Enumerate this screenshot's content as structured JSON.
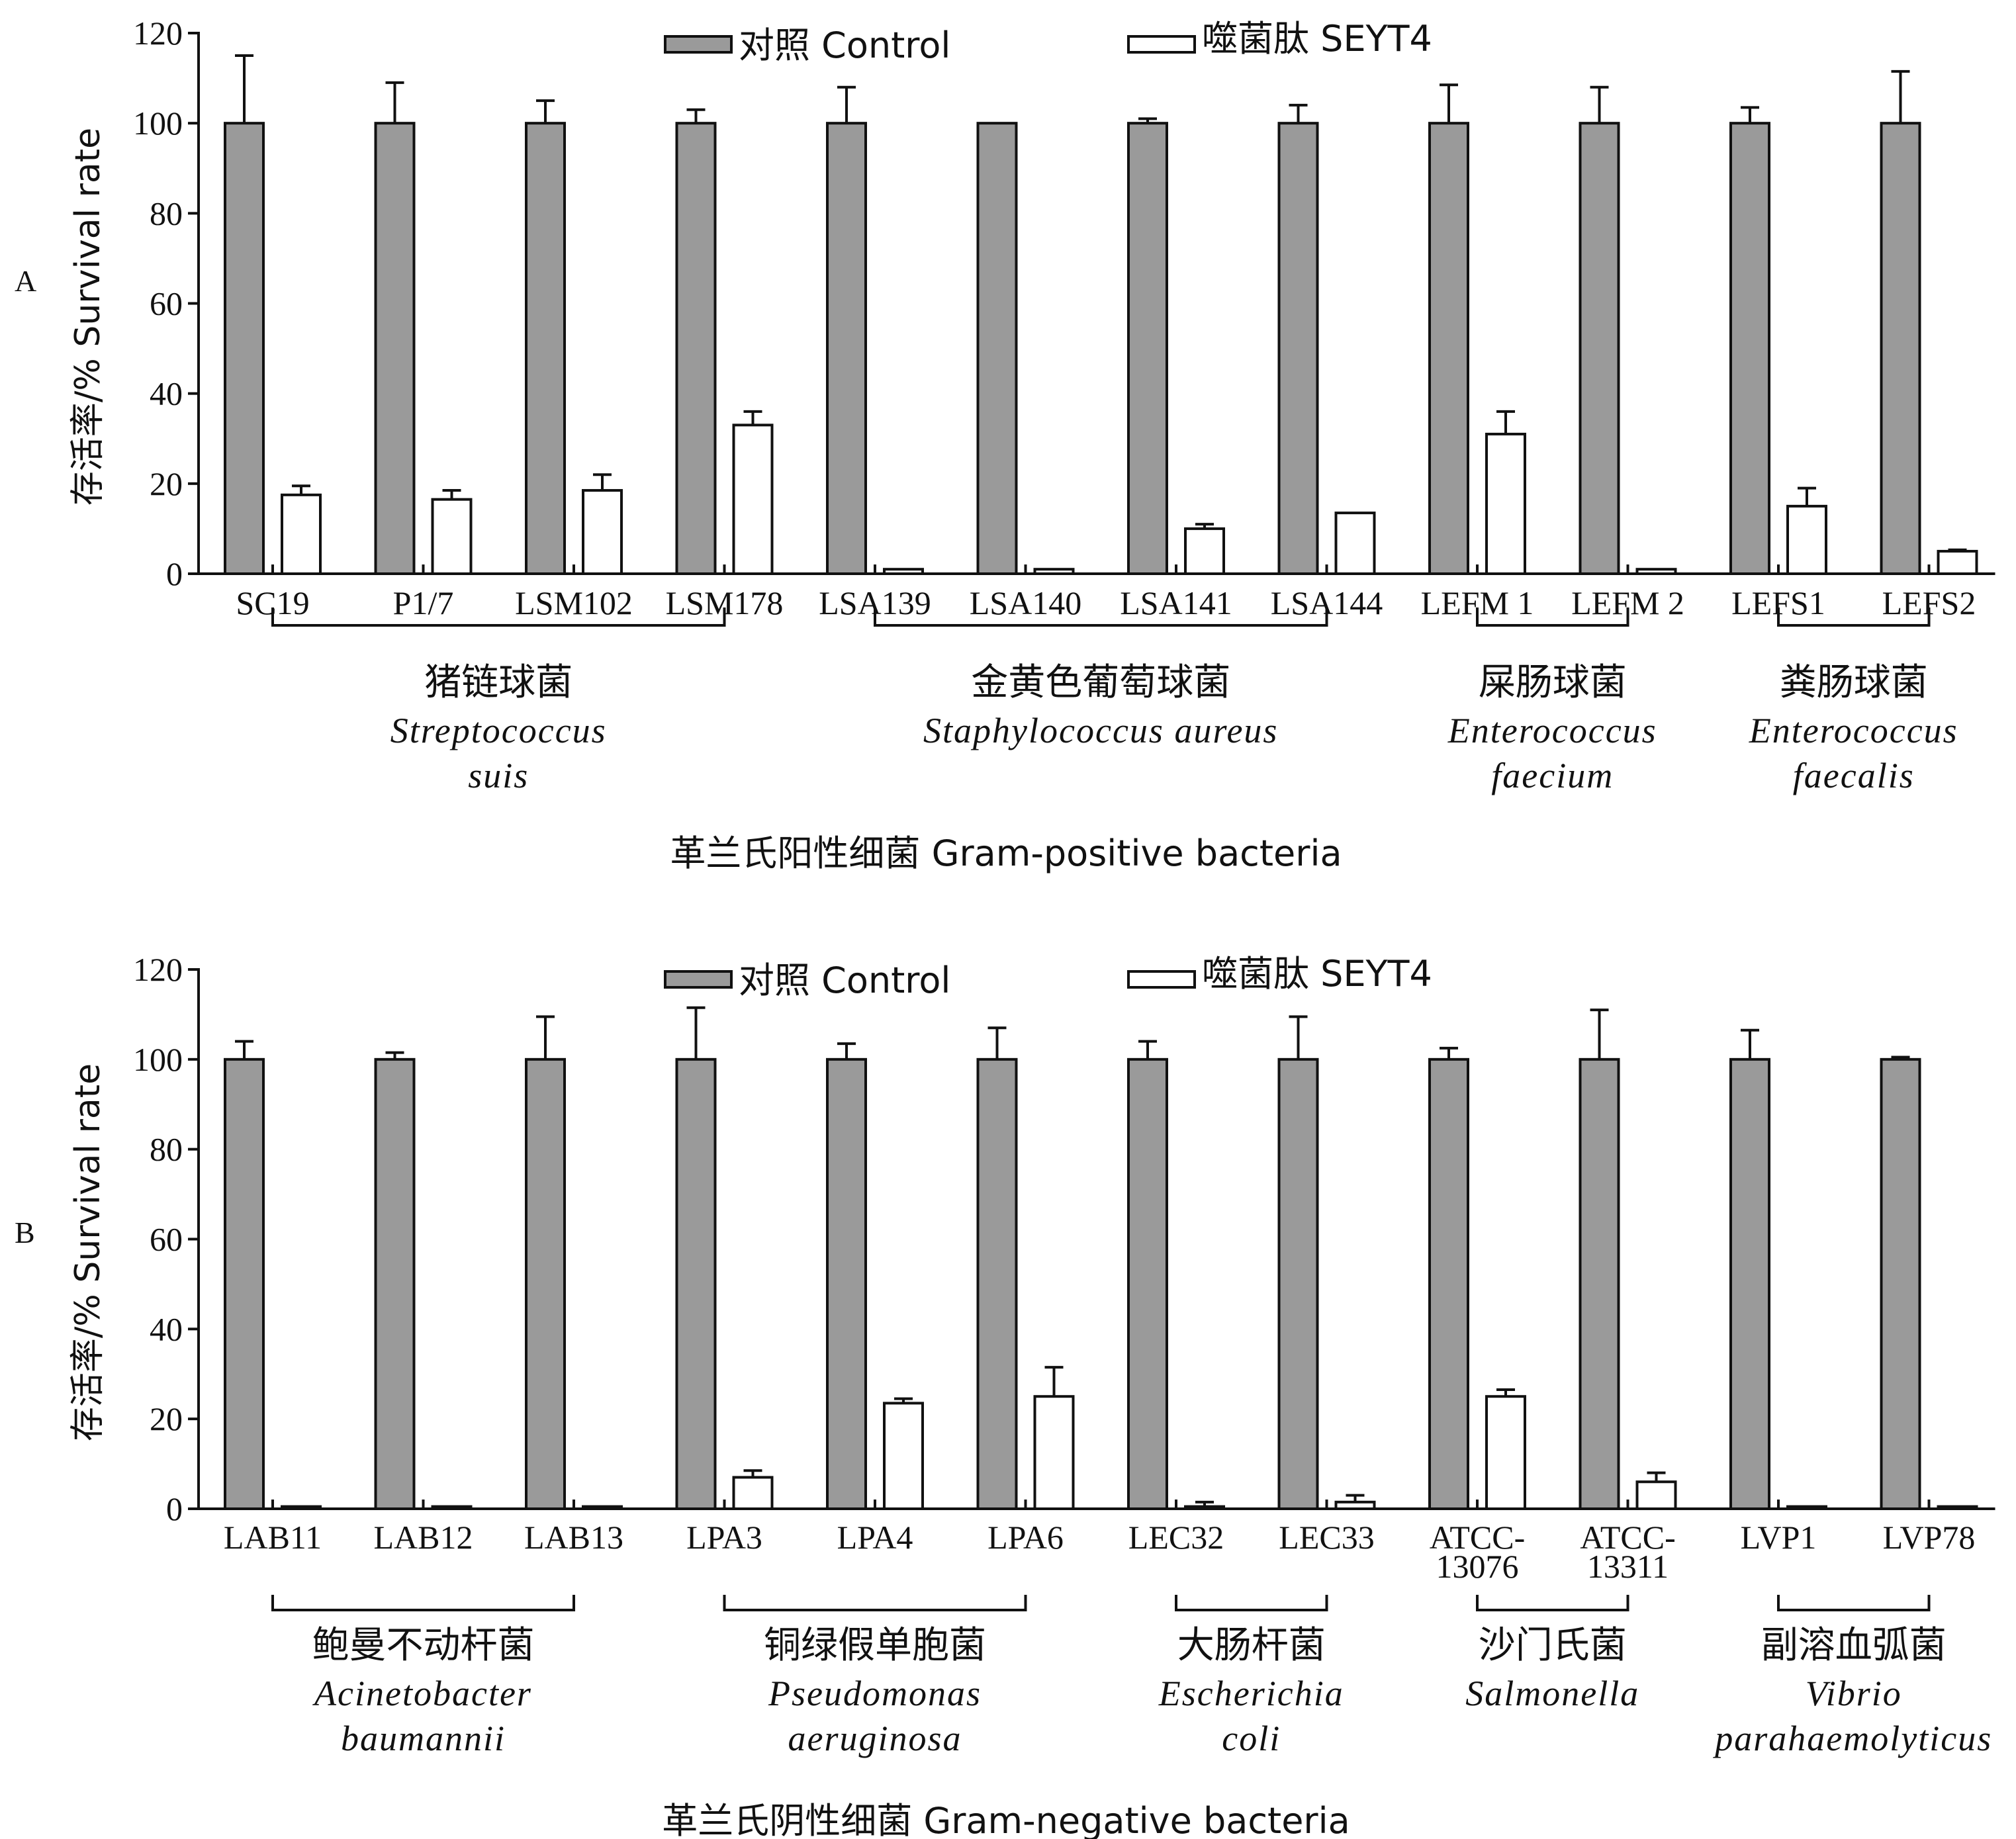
{
  "legend": {
    "control_label": "对照 Control",
    "treated_label": "噬菌肽 SEYT4",
    "control_color": "#9a9a9a",
    "treated_color": "#ffffff"
  },
  "chart_data": [
    {
      "type": "bar",
      "panel_label": "A",
      "ylabel": "存活率/% Survival rate",
      "ylim": [
        0,
        120
      ],
      "yticks": [
        0,
        20,
        40,
        60,
        80,
        100,
        120
      ],
      "grid": false,
      "legend_position": "top",
      "categories": [
        "SC19",
        "P1/7",
        "LSM102",
        "LSM178",
        "LSA139",
        "LSA140",
        "LSA141",
        "LSA144",
        "LEFM 1",
        "LEFM 2",
        "LEFS1",
        "LEFS2"
      ],
      "series": [
        {
          "name": "对照 Control",
          "values": [
            100,
            100,
            100,
            100,
            100,
            100,
            100,
            100,
            100,
            100,
            100,
            100
          ],
          "errors": [
            15,
            9,
            5,
            3,
            8,
            0,
            1,
            4,
            8.5,
            8,
            3.5,
            11.5
          ]
        },
        {
          "name": "噬菌肽 SEYT4",
          "values": [
            17.5,
            16.5,
            18.5,
            33,
            1,
            1,
            10,
            13.5,
            31,
            1,
            15,
            5
          ],
          "errors": [
            2,
            2,
            3.5,
            3,
            0,
            0,
            1,
            0,
            5,
            0,
            4,
            0.3
          ]
        }
      ],
      "groups": [
        {
          "cn": "猪链球菌",
          "latin": [
            "Streptococcus",
            "suis"
          ],
          "start": 0,
          "end": 3
        },
        {
          "cn": "金黄色葡萄球菌",
          "latin": [
            "Staphylococcus aureus"
          ],
          "start": 4,
          "end": 7
        },
        {
          "cn": "屎肠球菌",
          "latin": [
            "Enterococcus",
            "faecium"
          ],
          "start": 8,
          "end": 9
        },
        {
          "cn": "粪肠球菌",
          "latin": [
            "Enterococcus",
            "faecalis"
          ],
          "start": 10,
          "end": 11
        }
      ],
      "xlabel": "革兰氏阳性细菌 Gram-positive bacteria"
    },
    {
      "type": "bar",
      "panel_label": "B",
      "ylabel": "存活率/% Survival rate",
      "ylim": [
        0,
        120
      ],
      "yticks": [
        0,
        20,
        40,
        60,
        80,
        100,
        120
      ],
      "grid": false,
      "legend_position": "top",
      "categories": [
        "LAB11",
        "LAB12",
        "LAB13",
        "LPA3",
        "LPA4",
        "LPA6",
        "LEC32",
        "LEC33",
        "ATCC-\n13076",
        "ATCC-\n13311",
        "LVP1",
        "LVP78"
      ],
      "series": [
        {
          "name": "对照 Control",
          "values": [
            100,
            100,
            100,
            100,
            100,
            100,
            100,
            100,
            100,
            100,
            100,
            100
          ],
          "errors": [
            4,
            1.5,
            9.5,
            11.5,
            3.5,
            7,
            4,
            9.5,
            2.5,
            11,
            6.5,
            0.5
          ]
        },
        {
          "name": "噬菌肽 SEYT4",
          "values": [
            0.5,
            0.5,
            0.5,
            7,
            23.5,
            25,
            0.5,
            1.5,
            25,
            6,
            0.5,
            0.5
          ],
          "errors": [
            0,
            0,
            0,
            1.5,
            1,
            6.5,
            1,
            1.5,
            1.5,
            2,
            0,
            0
          ]
        }
      ],
      "groups": [
        {
          "cn": "鲍曼不动杆菌",
          "latin": [
            "Acinetobacter",
            "baumannii"
          ],
          "start": 0,
          "end": 2
        },
        {
          "cn": "铜绿假单胞菌",
          "latin": [
            "Pseudomonas",
            "aeruginosa"
          ],
          "start": 3,
          "end": 5
        },
        {
          "cn": "大肠杆菌",
          "latin": [
            "Escherichia",
            "coli"
          ],
          "start": 6,
          "end": 7
        },
        {
          "cn": "沙门氏菌",
          "latin": [
            "Salmonella"
          ],
          "start": 8,
          "end": 9
        },
        {
          "cn": "副溶血弧菌",
          "latin": [
            "Vibrio",
            "parahaemolyticus"
          ],
          "start": 10,
          "end": 11
        }
      ],
      "xlabel": "革兰氏阴性细菌 Gram-negative bacteria"
    }
  ]
}
